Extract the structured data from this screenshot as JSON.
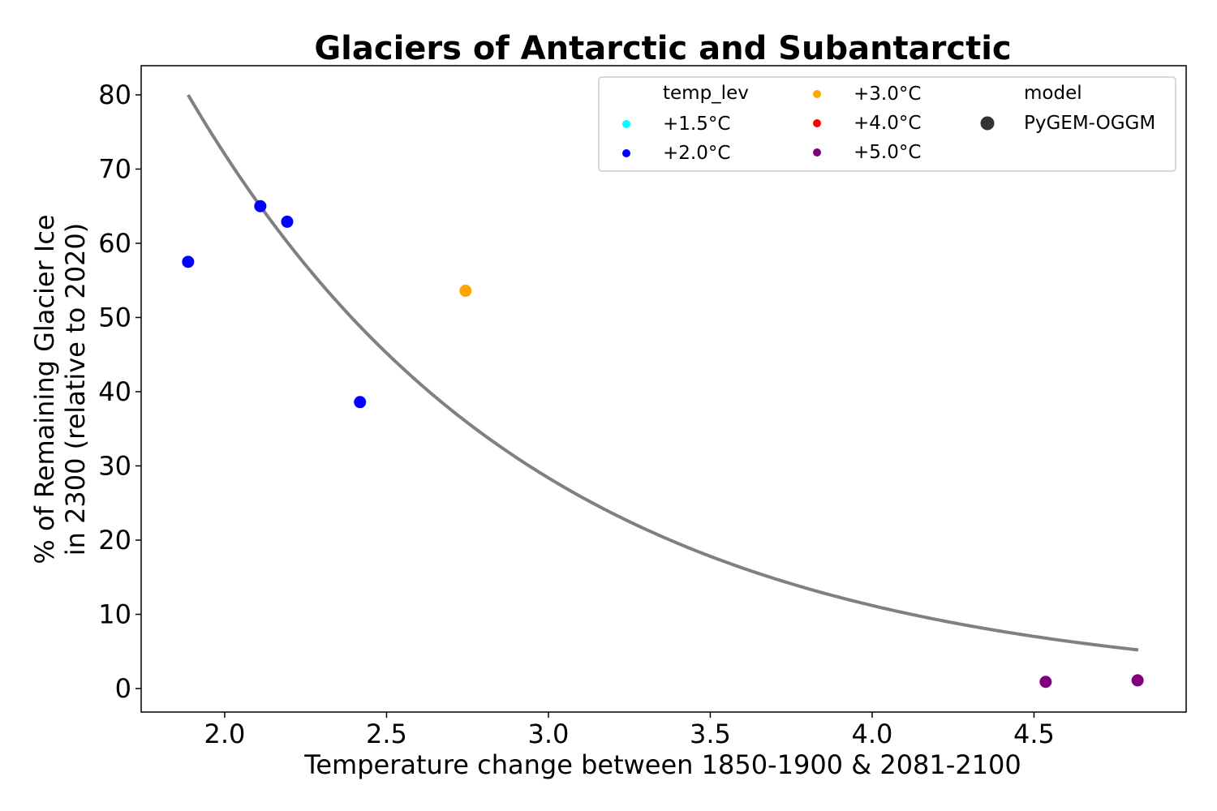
{
  "chart_data": {
    "type": "scatter",
    "title": "Glaciers of Antarctic and Subantarctic",
    "xlabel": "Temperature change between 1850-1900 & 2081-2100",
    "ylabel_lines": [
      "% of Remaining Glacier Ice",
      "in 2300 (relative to 2020)"
    ],
    "xlim": [
      1.742,
      4.97
    ],
    "ylim": [
      -3.17,
      83.93
    ],
    "xticks": [
      2.0,
      2.5,
      3.0,
      3.5,
      4.0,
      4.5
    ],
    "xtick_labels": [
      "2.0",
      "2.5",
      "3.0",
      "3.5",
      "4.0",
      "4.5"
    ],
    "yticks": [
      0,
      10,
      20,
      30,
      40,
      50,
      60,
      70,
      80
    ],
    "ytick_labels": [
      "0",
      "10",
      "20",
      "30",
      "40",
      "50",
      "60",
      "70",
      "80"
    ],
    "grid": false,
    "legend_position": "top-right",
    "series": [
      {
        "name": "+1.5°C",
        "color": "#00ffff",
        "points": []
      },
      {
        "name": "+2.0°C",
        "color": "#0000ff",
        "points": [
          [
            1.887,
            57.5
          ],
          [
            2.11,
            65.0
          ],
          [
            2.193,
            62.9
          ],
          [
            2.418,
            38.6
          ]
        ]
      },
      {
        "name": "+3.0°C",
        "color": "#ffa500",
        "points": [
          [
            2.744,
            53.6
          ]
        ]
      },
      {
        "name": "+4.0°C",
        "color": "#ff0000",
        "points": []
      },
      {
        "name": "+5.0°C",
        "color": "#800080",
        "points": [
          [
            4.536,
            0.9
          ],
          [
            4.82,
            1.1
          ]
        ]
      }
    ],
    "fit_curve": {
      "type": "exponential",
      "color": "#808080",
      "x_start": 1.887,
      "x_end": 4.822,
      "y_at_start": 80.0,
      "decay_rate": 0.931
    },
    "legend": {
      "hue_title": "temp_lev",
      "hue_entries": [
        {
          "label": "+1.5°C",
          "color": "#00ffff"
        },
        {
          "label": "+2.0°C",
          "color": "#0000ff"
        },
        {
          "label": "+3.0°C",
          "color": "#ffa500"
        },
        {
          "label": "+4.0°C",
          "color": "#ff0000"
        },
        {
          "label": "+5.0°C",
          "color": "#800080"
        }
      ],
      "style_title": "model",
      "style_entries": [
        {
          "label": "PyGEM-OGGM",
          "color": "#333333"
        }
      ]
    }
  }
}
